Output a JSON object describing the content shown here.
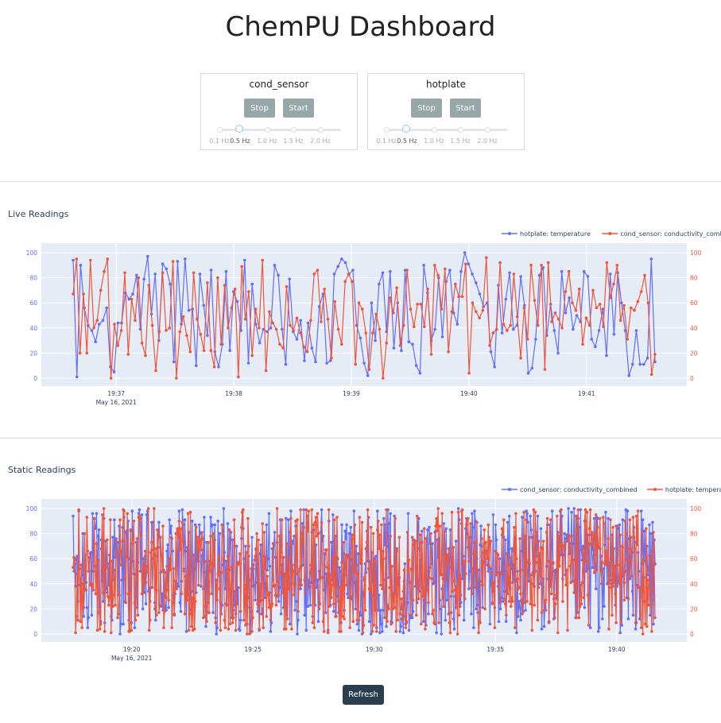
{
  "title": "ChemPU Dashboard",
  "controls": [
    {
      "name": "cond_sensor",
      "stop_label": "Stop",
      "start_label": "Start",
      "slider_marks": [
        "0.1 Hz",
        "0.5 Hz",
        "1.0 Hz",
        "1.5 Hz",
        "2.0 Hz"
      ],
      "slider_value": "0.5 Hz"
    },
    {
      "name": "hotplate",
      "stop_label": "Stop",
      "start_label": "Start",
      "slider_marks": [
        "0.1 Hz",
        "0.5 Hz",
        "1.0 Hz",
        "1.5 Hz",
        "2.0 Hz"
      ],
      "slider_value": "0.5 Hz"
    }
  ],
  "live": {
    "title": "Live Readings"
  },
  "static": {
    "title": "Static Readings"
  },
  "refresh_label": "Refresh",
  "colors": {
    "blue": "#636efa",
    "red": "#ef553b",
    "plot_bg": "#e5ecf6",
    "button": "#97a6a6",
    "refresh_button": "#2b3e50"
  },
  "chart_data": [
    {
      "type": "line",
      "title": "Live Readings",
      "x_ticks": [
        "19:37",
        "19:38",
        "19:39",
        "19:40",
        "19:41"
      ],
      "x_date_label": "May 16, 2021",
      "ylim": [
        0,
        100
      ],
      "y_ticks": [
        0,
        20,
        40,
        60,
        80,
        100
      ],
      "y2_ticks": [
        0,
        20,
        40,
        60,
        80,
        100
      ],
      "legend_position": "top-right",
      "x_range": [
        "19:36:38",
        "19:41:35"
      ],
      "series": [
        {
          "name": "hotplate: temperature",
          "color": "#636efa",
          "axis": "left",
          "values": [
            94,
            1,
            90,
            56,
            42,
            38,
            29,
            43,
            46,
            56,
            9,
            5,
            44,
            44,
            68,
            63,
            67,
            82,
            39,
            79,
            97,
            51,
            83,
            30,
            91,
            87,
            75,
            13,
            93,
            43,
            95,
            54,
            55,
            10,
            83,
            58,
            34,
            86,
            21,
            9,
            27,
            85,
            22,
            69,
            61,
            38,
            94,
            12,
            75,
            43,
            28,
            39,
            37,
            40,
            90,
            82,
            39,
            11,
            79,
            37,
            31,
            46,
            14,
            44,
            24,
            13,
            57,
            67,
            12,
            14,
            83,
            89,
            95,
            92,
            83,
            86,
            42,
            32,
            12,
            2,
            60,
            30,
            75,
            84,
            37,
            85,
            24,
            60,
            22,
            86,
            29,
            27,
            10,
            4,
            90,
            68,
            30,
            39,
            80,
            33,
            77,
            86,
            52,
            43,
            85,
            100,
            91,
            83,
            76,
            67,
            57,
            60,
            21,
            9,
            74,
            36,
            63,
            84,
            39,
            42,
            81,
            58,
            4,
            8,
            31,
            82,
            88,
            34,
            59,
            38,
            20,
            85,
            52,
            64,
            39,
            50,
            45,
            85,
            81,
            31,
            25,
            38,
            55,
            18,
            83,
            35,
            84,
            60,
            38,
            2,
            11,
            38,
            11,
            11,
            16,
            95,
            13
          ]
        },
        {
          "name": "cond_sensor: conductivity_combined",
          "color": "#ef553b",
          "axis": "right",
          "values": [
            67,
            95,
            20,
            67,
            20,
            94,
            40,
            46,
            70,
            85,
            95,
            0,
            43,
            26,
            38,
            84,
            19,
            63,
            46,
            80,
            28,
            18,
            74,
            42,
            6,
            37,
            84,
            38,
            40,
            93,
            0,
            37,
            49,
            34,
            21,
            84,
            47,
            35,
            22,
            76,
            22,
            9,
            80,
            27,
            74,
            40,
            56,
            71,
            1,
            89,
            47,
            69,
            18,
            55,
            40,
            94,
            6,
            53,
            44,
            39,
            27,
            24,
            73,
            42,
            38,
            48,
            36,
            25,
            21,
            46,
            83,
            86,
            45,
            71,
            47,
            16,
            61,
            39,
            27,
            77,
            83,
            77,
            11,
            60,
            55,
            36,
            7,
            36,
            51,
            39,
            0,
            28,
            64,
            52,
            72,
            26,
            42,
            86,
            55,
            41,
            59,
            59,
            41,
            71,
            19,
            90,
            82,
            55,
            87,
            21,
            53,
            75,
            65,
            65,
            91,
            4,
            60,
            53,
            48,
            54,
            96,
            26,
            36,
            39,
            92,
            43,
            38,
            42,
            83,
            49,
            16,
            56,
            31,
            90,
            62,
            42,
            90,
            7,
            92,
            45,
            52,
            47,
            40,
            69,
            85,
            60,
            54,
            71,
            27,
            48,
            42,
            70,
            56,
            59,
            41,
            92,
            64,
            75,
            90,
            46,
            58,
            31,
            56,
            54,
            61,
            69,
            82,
            60,
            3,
            19
          ]
        }
      ]
    },
    {
      "type": "line",
      "title": "Static Readings",
      "x_ticks": [
        "19:20",
        "19:25",
        "19:30",
        "19:35",
        "19:40"
      ],
      "x_date_label": "May 16, 2021",
      "ylim": [
        0,
        100
      ],
      "y_ticks": [
        0,
        20,
        40,
        60,
        80,
        100
      ],
      "y2_ticks": [
        0,
        20,
        40,
        60,
        80,
        100
      ],
      "legend_position": "top-right",
      "x_range": [
        "19:17:35",
        "19:41:35"
      ],
      "series": [
        {
          "name": "cond_sensor: conductivity_combined",
          "color": "#636efa",
          "axis": "left",
          "count": 720,
          "range": [
            0,
            100
          ]
        },
        {
          "name": "hotplate: temperature",
          "color": "#ef553b",
          "axis": "right",
          "count": 720,
          "range": [
            0,
            100
          ]
        }
      ]
    }
  ]
}
